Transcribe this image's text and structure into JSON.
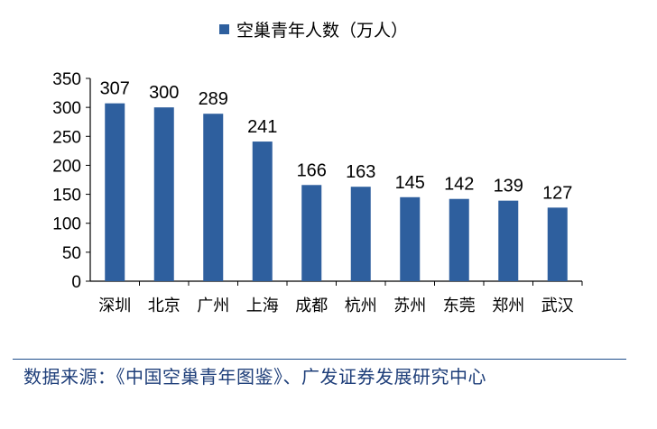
{
  "chart_data": {
    "type": "bar",
    "categories": [
      "深圳",
      "北京",
      "广州",
      "上海",
      "成都",
      "杭州",
      "苏州",
      "东莞",
      "郑州",
      "武汉"
    ],
    "series": [
      {
        "name": "空巢青年人数（万人）",
        "values": [
          307,
          300,
          289,
          241,
          166,
          163,
          145,
          142,
          139,
          127
        ]
      }
    ],
    "data_labels": [
      "307",
      "300",
      "289",
      "241",
      "166",
      "163",
      "145",
      "142",
      "139",
      "127"
    ],
    "yticks": [
      "0",
      "50",
      "100",
      "150",
      "200",
      "250",
      "300",
      "350"
    ],
    "ylim": [
      0,
      350
    ],
    "grid": false,
    "legend_position": "top-center",
    "bar_color": "#2e5f9e"
  },
  "source_text": "数据来源：《中国空巢青年图鉴》、广发证券发展研究中心",
  "colors": {
    "source_text": "#1f3f7a",
    "rule": "#1f4e8c"
  }
}
